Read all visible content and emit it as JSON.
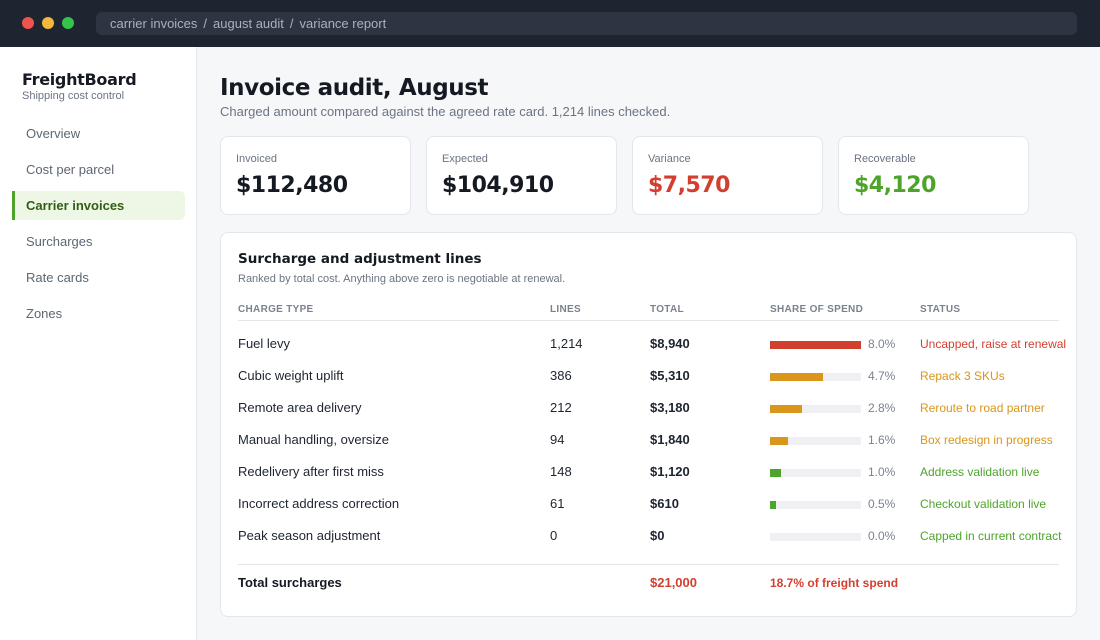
{
  "window": {
    "breadcrumb": [
      "carrier invoices",
      "august audit",
      "variance report"
    ],
    "separator": "/"
  },
  "sidebar": {
    "brand": "FreightBoard",
    "tagline": "Shipping cost control",
    "items": [
      {
        "label": "Overview",
        "active": false
      },
      {
        "label": "Cost per parcel",
        "active": false
      },
      {
        "label": "Carrier invoices",
        "active": true
      },
      {
        "label": "Surcharges",
        "active": false
      },
      {
        "label": "Rate cards",
        "active": false
      },
      {
        "label": "Zones",
        "active": false
      }
    ]
  },
  "header": {
    "title": "Invoice audit, August",
    "subtitle": "Charged amount compared against the agreed rate card. 1,214 lines checked."
  },
  "stats": [
    {
      "label": "Invoiced",
      "value": "$112,480",
      "tone": "default"
    },
    {
      "label": "Expected",
      "value": "$104,910",
      "tone": "default"
    },
    {
      "label": "Variance",
      "value": "$7,570",
      "tone": "negative"
    },
    {
      "label": "Recoverable",
      "value": "$4,120",
      "tone": "positive"
    }
  ],
  "table": {
    "title": "Surcharge and adjustment lines",
    "subtitle": "Ranked by total cost. Anything above zero is negotiable at renewal.",
    "columns": [
      "CHARGE TYPE",
      "LINES",
      "TOTAL",
      "SHARE OF SPEND",
      "STATUS"
    ],
    "rows": [
      {
        "type": "Fuel levy",
        "lines": "1,214",
        "total": "$8,940",
        "share": 8.0,
        "share_label": "8.0%",
        "status": "Uncapped, raise at renewal",
        "color": "#d33f2f"
      },
      {
        "type": "Cubic weight uplift",
        "lines": "386",
        "total": "$5,310",
        "share": 4.7,
        "share_label": "4.7%",
        "status": "Repack 3 SKUs",
        "color": "#d9961a"
      },
      {
        "type": "Remote area delivery",
        "lines": "212",
        "total": "$3,180",
        "share": 2.8,
        "share_label": "2.8%",
        "status": "Reroute to road partner",
        "color": "#d9961a"
      },
      {
        "type": "Manual handling, oversize",
        "lines": "94",
        "total": "$1,840",
        "share": 1.6,
        "share_label": "1.6%",
        "status": "Box redesign in progress",
        "color": "#d9961a"
      },
      {
        "type": "Redelivery after first miss",
        "lines": "148",
        "total": "$1,120",
        "share": 1.0,
        "share_label": "1.0%",
        "status": "Address validation live",
        "color": "#4ea42a"
      },
      {
        "type": "Incorrect address correction",
        "lines": "61",
        "total": "$610",
        "share": 0.5,
        "share_label": "0.5%",
        "status": "Checkout validation live",
        "color": "#4ea42a"
      },
      {
        "type": "Peak season adjustment",
        "lines": "0",
        "total": "$0",
        "share": 0.0,
        "share_label": "0.0%",
        "status": "Capped in current contract",
        "color": "#4ea42a"
      }
    ],
    "bar_max_share": 8.0,
    "footer": {
      "label": "Total surcharges",
      "total": "$21,000",
      "note": "18.7% of freight spend",
      "color": "#d33f2f"
    }
  }
}
